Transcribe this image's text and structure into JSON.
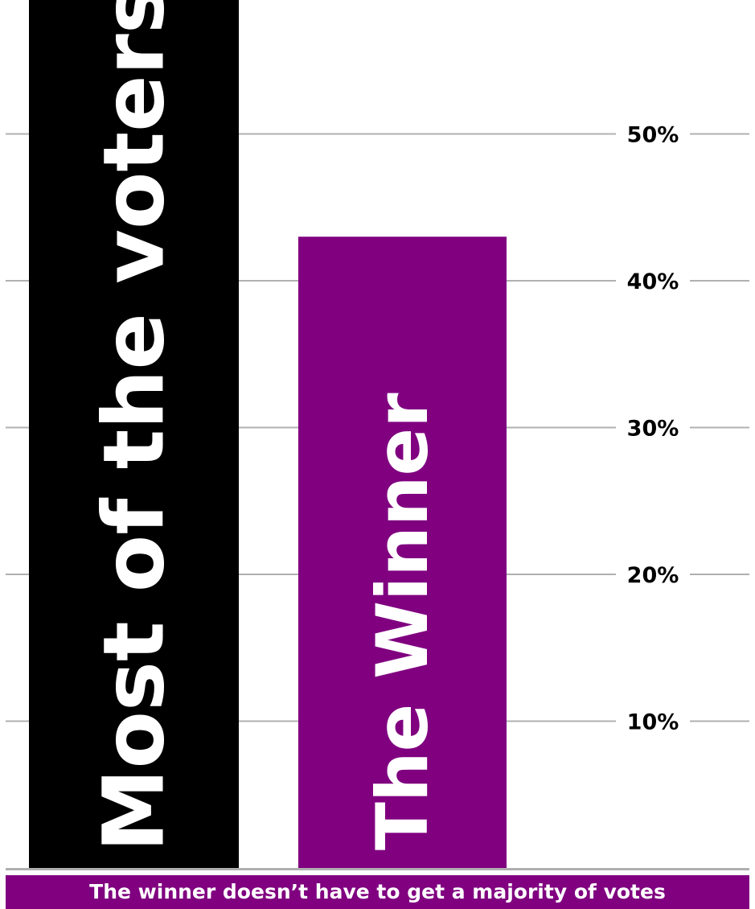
{
  "chart_data": {
    "type": "bar",
    "categories": [
      "Most of the voters",
      "The Winner"
    ],
    "values": [
      62,
      43
    ],
    "colors": [
      "#000000",
      "#800080"
    ],
    "label_color": "#ffffff",
    "ylim": [
      0,
      60
    ],
    "yticks": [
      {
        "value": 10,
        "label": "10%"
      },
      {
        "value": 20,
        "label": "20%"
      },
      {
        "value": 30,
        "label": "30%"
      },
      {
        "value": 40,
        "label": "40%"
      },
      {
        "value": 50,
        "label": "50%"
      }
    ],
    "grid": true,
    "grid_color": "#b0b0b0",
    "title": "",
    "xlabel": "",
    "ylabel": ""
  },
  "footer": {
    "text": "The winner doesn’t have to get a majority of votes",
    "background": "#800080"
  }
}
